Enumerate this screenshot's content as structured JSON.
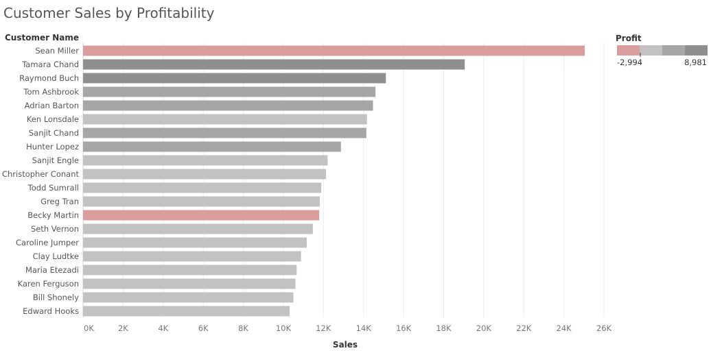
{
  "title": "Customer Sales by Profitability",
  "colors": {
    "negative": "#d99d9d",
    "light_gray": "#c2c2c2",
    "mid_gray": "#a6a6a6",
    "dark_gray": "#8f8f8f",
    "grid": "#ececec"
  },
  "chart_data": {
    "type": "bar",
    "orientation": "horizontal",
    "category_header": "Customer Name",
    "xlabel": "Sales",
    "xlim": [
      0,
      26000
    ],
    "x_ticks": [
      0,
      2000,
      4000,
      6000,
      8000,
      10000,
      12000,
      14000,
      16000,
      18000,
      20000,
      22000,
      24000,
      26000
    ],
    "x_tick_labels": [
      "0K",
      "2K",
      "4K",
      "6K",
      "8K",
      "10K",
      "12K",
      "14K",
      "16K",
      "18K",
      "20K",
      "22K",
      "24K",
      "26K"
    ],
    "grid": true,
    "categories": [
      "Sean Miller",
      "Tamara Chand",
      "Raymond Buch",
      "Tom Ashbrook",
      "Adrian Barton",
      "Ken Lonsdale",
      "Sanjit Chand",
      "Hunter Lopez",
      "Sanjit Engle",
      "Christopher Conant",
      "Todd Sumrall",
      "Greg Tran",
      "Becky Martin",
      "Seth Vernon",
      "Caroline Jumper",
      "Clay Ludtke",
      "Maria Etezadi",
      "Karen Ferguson",
      "Bill Shonely",
      "Edward Hooks"
    ],
    "values": [
      25043,
      19052,
      15117,
      14596,
      14474,
      14175,
      14142,
      12873,
      12209,
      12129,
      11892,
      11820,
      11790,
      11470,
      11165,
      10880,
      10663,
      10604,
      10501,
      10310
    ],
    "color_bins": [
      "negative",
      "dark_gray",
      "dark_gray",
      "mid_gray",
      "mid_gray",
      "light_gray",
      "mid_gray",
      "mid_gray",
      "light_gray",
      "light_gray",
      "light_gray",
      "light_gray",
      "negative",
      "light_gray",
      "light_gray",
      "light_gray",
      "light_gray",
      "light_gray",
      "light_gray",
      "light_gray"
    ],
    "legend": {
      "title": "Profit",
      "min_label": "-2,994",
      "max_label": "8,981",
      "placement": "top-right",
      "steps": [
        "negative",
        "light_gray",
        "mid_gray",
        "dark_gray"
      ]
    }
  }
}
